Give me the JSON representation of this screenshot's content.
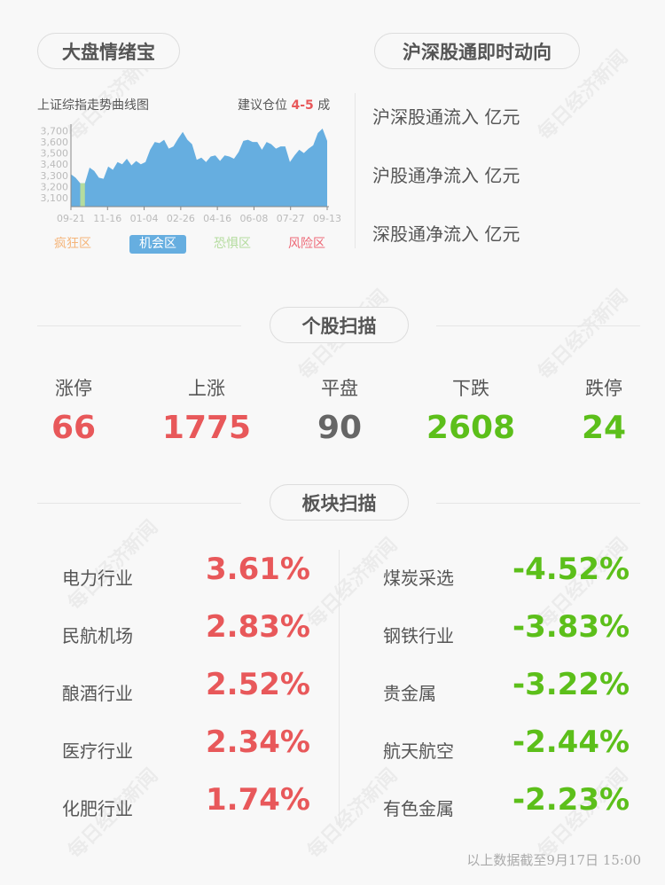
{
  "watermark": "每日经济新闻",
  "mood": {
    "title": "大盘情绪宝",
    "chart_title": "上证综指走势曲线图",
    "advice_prefix": "建议仓位",
    "advice_value": "4-5",
    "advice_suffix": "成",
    "legend": [
      {
        "label": "疯狂区",
        "color": "#f5b57a",
        "active": false
      },
      {
        "label": "机会区",
        "color": "#66aee0",
        "active": true
      },
      {
        "label": "恐惧区",
        "color": "#b4dc9e",
        "active": false
      },
      {
        "label": "风险区",
        "color": "#ee6a78",
        "active": false
      }
    ]
  },
  "chart_data": {
    "type": "area",
    "title": "上证综指走势曲线图",
    "x_ticks": [
      "09-21",
      "11-16",
      "01-04",
      "02-26",
      "04-16",
      "06-08",
      "07-27",
      "09-13"
    ],
    "y_ticks": [
      "3,100",
      "3,200",
      "3,300",
      "3,400",
      "3,500",
      "3,600",
      "3,700"
    ],
    "ylim": [
      3020,
      3760
    ],
    "values": [
      3310,
      3280,
      3230,
      3230,
      3370,
      3340,
      3280,
      3270,
      3380,
      3350,
      3420,
      3400,
      3450,
      3390,
      3430,
      3400,
      3420,
      3530,
      3600,
      3590,
      3620,
      3540,
      3560,
      3630,
      3690,
      3620,
      3580,
      3440,
      3460,
      3420,
      3470,
      3480,
      3430,
      3480,
      3470,
      3450,
      3510,
      3610,
      3620,
      3600,
      3600,
      3530,
      3600,
      3580,
      3540,
      3560,
      3560,
      3420,
      3480,
      3530,
      3500,
      3540,
      3570,
      3680,
      3720,
      3610
    ],
    "fear_points": [
      2,
      3
    ],
    "color": "#66aee0",
    "fear_color": "#b4dc9e"
  },
  "hk": {
    "title": "沪深股通即时动向",
    "rows": [
      "沪深股通流入 亿元",
      "沪股通净流入 亿元",
      "深股通净流入 亿元"
    ]
  },
  "stocks": {
    "title": "个股扫描",
    "items": [
      {
        "label": "涨停",
        "value": "66",
        "color": "#e8585a"
      },
      {
        "label": "上涨",
        "value": "1775",
        "color": "#e8585a"
      },
      {
        "label": "平盘",
        "value": "90",
        "color": "#666666"
      },
      {
        "label": "下跌",
        "value": "2608",
        "color": "#5cbf1a"
      },
      {
        "label": "跌停",
        "value": "24",
        "color": "#5cbf1a"
      }
    ]
  },
  "sectors": {
    "title": "板块扫描",
    "up": [
      {
        "name": "电力行业",
        "value": "3.61%"
      },
      {
        "name": "民航机场",
        "value": "2.83%"
      },
      {
        "name": "酿酒行业",
        "value": "2.52%"
      },
      {
        "name": "医疗行业",
        "value": "2.34%"
      },
      {
        "name": "化肥行业",
        "value": "1.74%"
      }
    ],
    "down": [
      {
        "name": "煤炭采选",
        "value": "-4.52%"
      },
      {
        "name": "钢铁行业",
        "value": "-3.83%"
      },
      {
        "name": "贵金属",
        "value": "-3.22%"
      },
      {
        "name": "航天航空",
        "value": "-2.44%"
      },
      {
        "name": "有色金属",
        "value": "-2.23%"
      }
    ],
    "up_color": "#e8585a",
    "down_color": "#5cbf1a"
  },
  "footer": "以上数据截至9月17日 15:00"
}
